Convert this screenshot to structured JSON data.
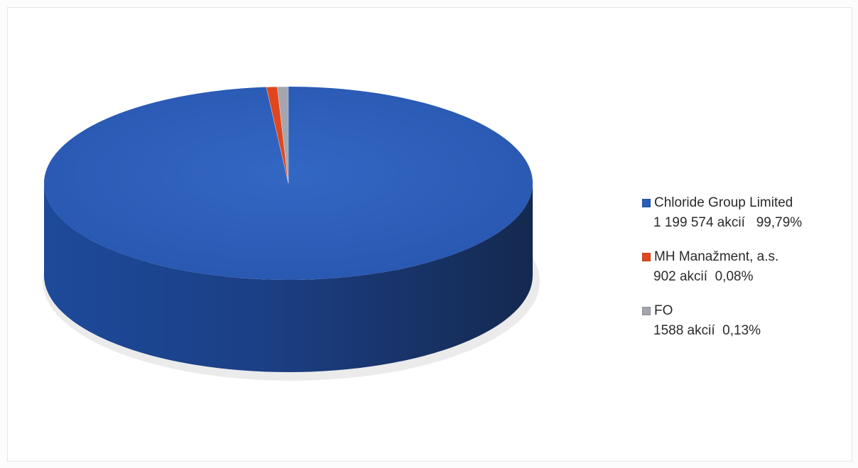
{
  "chart_data": {
    "type": "pie",
    "style": "3d",
    "series": [
      {
        "name": "Chloride Group Limited",
        "value": 1199574,
        "detail": "1 199 574 akcií   99,79%",
        "color": "#2a5db8"
      },
      {
        "name": "MH Manažment, a.s.",
        "value": 902,
        "detail": "902 akcií  0,08%",
        "color": "#e0471f"
      },
      {
        "name": "FO",
        "value": 1588,
        "detail": "1588 akcií  0,13%",
        "color": "#a3a6ae"
      }
    ],
    "legend_position": "right"
  }
}
